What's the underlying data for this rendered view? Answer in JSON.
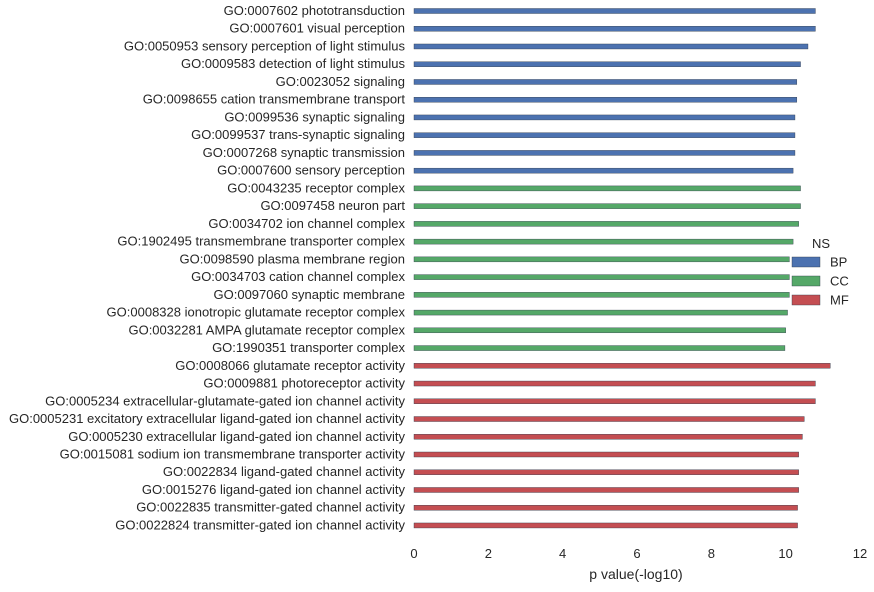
{
  "chart_data": {
    "type": "bar",
    "orientation": "horizontal",
    "xlabel": "p value(-log10)",
    "xlim": [
      0,
      12
    ],
    "xticks": [
      0,
      2,
      4,
      6,
      8,
      10,
      12
    ],
    "grid": false,
    "legend": {
      "title": "NS",
      "placement": "right",
      "entries": [
        {
          "label": "BP",
          "color": "#4c72b0"
        },
        {
          "label": "CC",
          "color": "#55a868"
        },
        {
          "label": "MF",
          "color": "#c44e52"
        }
      ]
    },
    "bars": [
      {
        "label": "GO:0007602 phototransduction",
        "value": 10.8,
        "group": "BP"
      },
      {
        "label": "GO:0007601 visual perception",
        "value": 10.8,
        "group": "BP"
      },
      {
        "label": "GO:0050953 sensory perception of light stimulus",
        "value": 10.6,
        "group": "BP"
      },
      {
        "label": "GO:0009583 detection of light stimulus",
        "value": 10.4,
        "group": "BP"
      },
      {
        "label": "GO:0023052 signaling",
        "value": 10.3,
        "group": "BP"
      },
      {
        "label": "GO:0098655 cation transmembrane transport",
        "value": 10.3,
        "group": "BP"
      },
      {
        "label": "GO:0099536 synaptic signaling",
        "value": 10.25,
        "group": "BP"
      },
      {
        "label": "GO:0099537 trans-synaptic signaling",
        "value": 10.25,
        "group": "BP"
      },
      {
        "label": "GO:0007268 synaptic transmission",
        "value": 10.25,
        "group": "BP"
      },
      {
        "label": "GO:0007600 sensory perception",
        "value": 10.2,
        "group": "BP"
      },
      {
        "label": "GO:0043235 receptor complex",
        "value": 10.4,
        "group": "CC"
      },
      {
        "label": "GO:0097458 neuron part",
        "value": 10.4,
        "group": "CC"
      },
      {
        "label": "GO:0034702 ion channel complex",
        "value": 10.35,
        "group": "CC"
      },
      {
        "label": "GO:1902495 transmembrane transporter complex",
        "value": 10.2,
        "group": "CC"
      },
      {
        "label": "GO:0098590 plasma membrane region",
        "value": 10.1,
        "group": "CC"
      },
      {
        "label": "GO:0034703 cation channel complex",
        "value": 10.1,
        "group": "CC"
      },
      {
        "label": "GO:0097060 synaptic membrane",
        "value": 10.1,
        "group": "CC"
      },
      {
        "label": "GO:0008328 ionotropic glutamate receptor complex",
        "value": 10.05,
        "group": "CC"
      },
      {
        "label": "GO:0032281 AMPA glutamate receptor complex",
        "value": 10.0,
        "group": "CC"
      },
      {
        "label": "GO:1990351 transporter complex",
        "value": 9.98,
        "group": "CC"
      },
      {
        "label": "GO:0008066 glutamate receptor activity",
        "value": 11.2,
        "group": "MF"
      },
      {
        "label": "GO:0009881 photoreceptor activity",
        "value": 10.8,
        "group": "MF"
      },
      {
        "label": "GO:0005234 extracellular-glutamate-gated ion channel activity",
        "value": 10.8,
        "group": "MF"
      },
      {
        "label": "GO:0005231 excitatory extracellular ligand-gated ion channel activity",
        "value": 10.5,
        "group": "MF"
      },
      {
        "label": "GO:0005230 extracellular ligand-gated ion channel activity",
        "value": 10.45,
        "group": "MF"
      },
      {
        "label": "GO:0015081 sodium ion transmembrane transporter activity",
        "value": 10.35,
        "group": "MF"
      },
      {
        "label": "GO:0022834 ligand-gated channel activity",
        "value": 10.35,
        "group": "MF"
      },
      {
        "label": "GO:0015276 ligand-gated ion channel activity",
        "value": 10.35,
        "group": "MF"
      },
      {
        "label": "GO:0022835 transmitter-gated channel activity",
        "value": 10.32,
        "group": "MF"
      },
      {
        "label": "GO:0022824 transmitter-gated ion channel activity",
        "value": 10.32,
        "group": "MF"
      }
    ]
  }
}
